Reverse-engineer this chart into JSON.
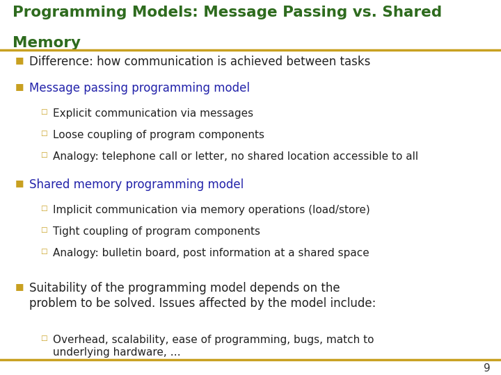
{
  "title_line1": "Programming Models: Message Passing vs. Shared",
  "title_line2": "Memory",
  "title_color": "#2E6B1E",
  "background_color": "#FFFFFF",
  "gold_line_color": "#C8A020",
  "bullet_color": "#C8A020",
  "sub_bullet_color": "#C8A020",
  "page_number": "9",
  "items": [
    {
      "level": 1,
      "text": "Difference: how communication is achieved between tasks",
      "color": "#222222"
    },
    {
      "level": 1,
      "text": "Message passing programming model",
      "color": "#2222AA"
    },
    {
      "level": 2,
      "text": "Explicit communication via messages",
      "color": "#222222"
    },
    {
      "level": 2,
      "text": "Loose coupling of program components",
      "color": "#222222"
    },
    {
      "level": 2,
      "text": "Analogy: telephone call or letter, no shared location accessible to all",
      "color": "#222222"
    },
    {
      "level": 1,
      "text": "Shared memory programming model",
      "color": "#2222AA"
    },
    {
      "level": 2,
      "text": "Implicit communication via memory operations (load/store)",
      "color": "#222222"
    },
    {
      "level": 2,
      "text": "Tight coupling of program components",
      "color": "#222222"
    },
    {
      "level": 2,
      "text": "Analogy: bulletin board, post information at a shared space",
      "color": "#222222"
    },
    {
      "level": 1,
      "text": "Suitability of the programming model depends on the\nproblem to be solved. Issues affected by the model include:",
      "color": "#222222"
    },
    {
      "level": 2,
      "text": "Overhead, scalability, ease of programming, bugs, match to\nunderlying hardware, …",
      "color": "#222222"
    }
  ]
}
